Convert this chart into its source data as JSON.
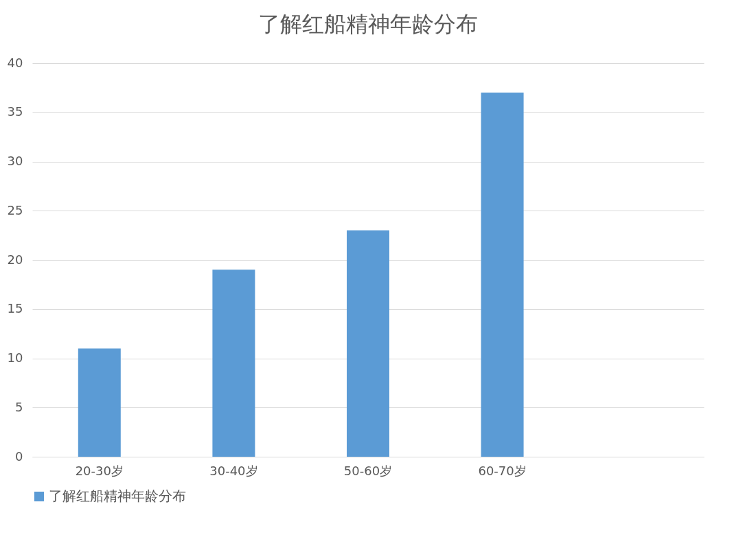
{
  "chart_data": {
    "type": "bar",
    "title": "了解红船精神年龄分布",
    "categories": [
      "20-30岁",
      "30-40岁",
      "50-60岁",
      "60-70岁",
      null
    ],
    "series": [
      {
        "name": "了解红船精神年龄分布",
        "color": "#5b9bd5",
        "values": [
          11,
          19,
          23,
          37,
          null
        ]
      }
    ],
    "ylim": [
      0,
      40
    ],
    "yticks": [
      0,
      5,
      10,
      15,
      20,
      25,
      30,
      35,
      40
    ],
    "grid": "y",
    "legend": "bottom"
  }
}
